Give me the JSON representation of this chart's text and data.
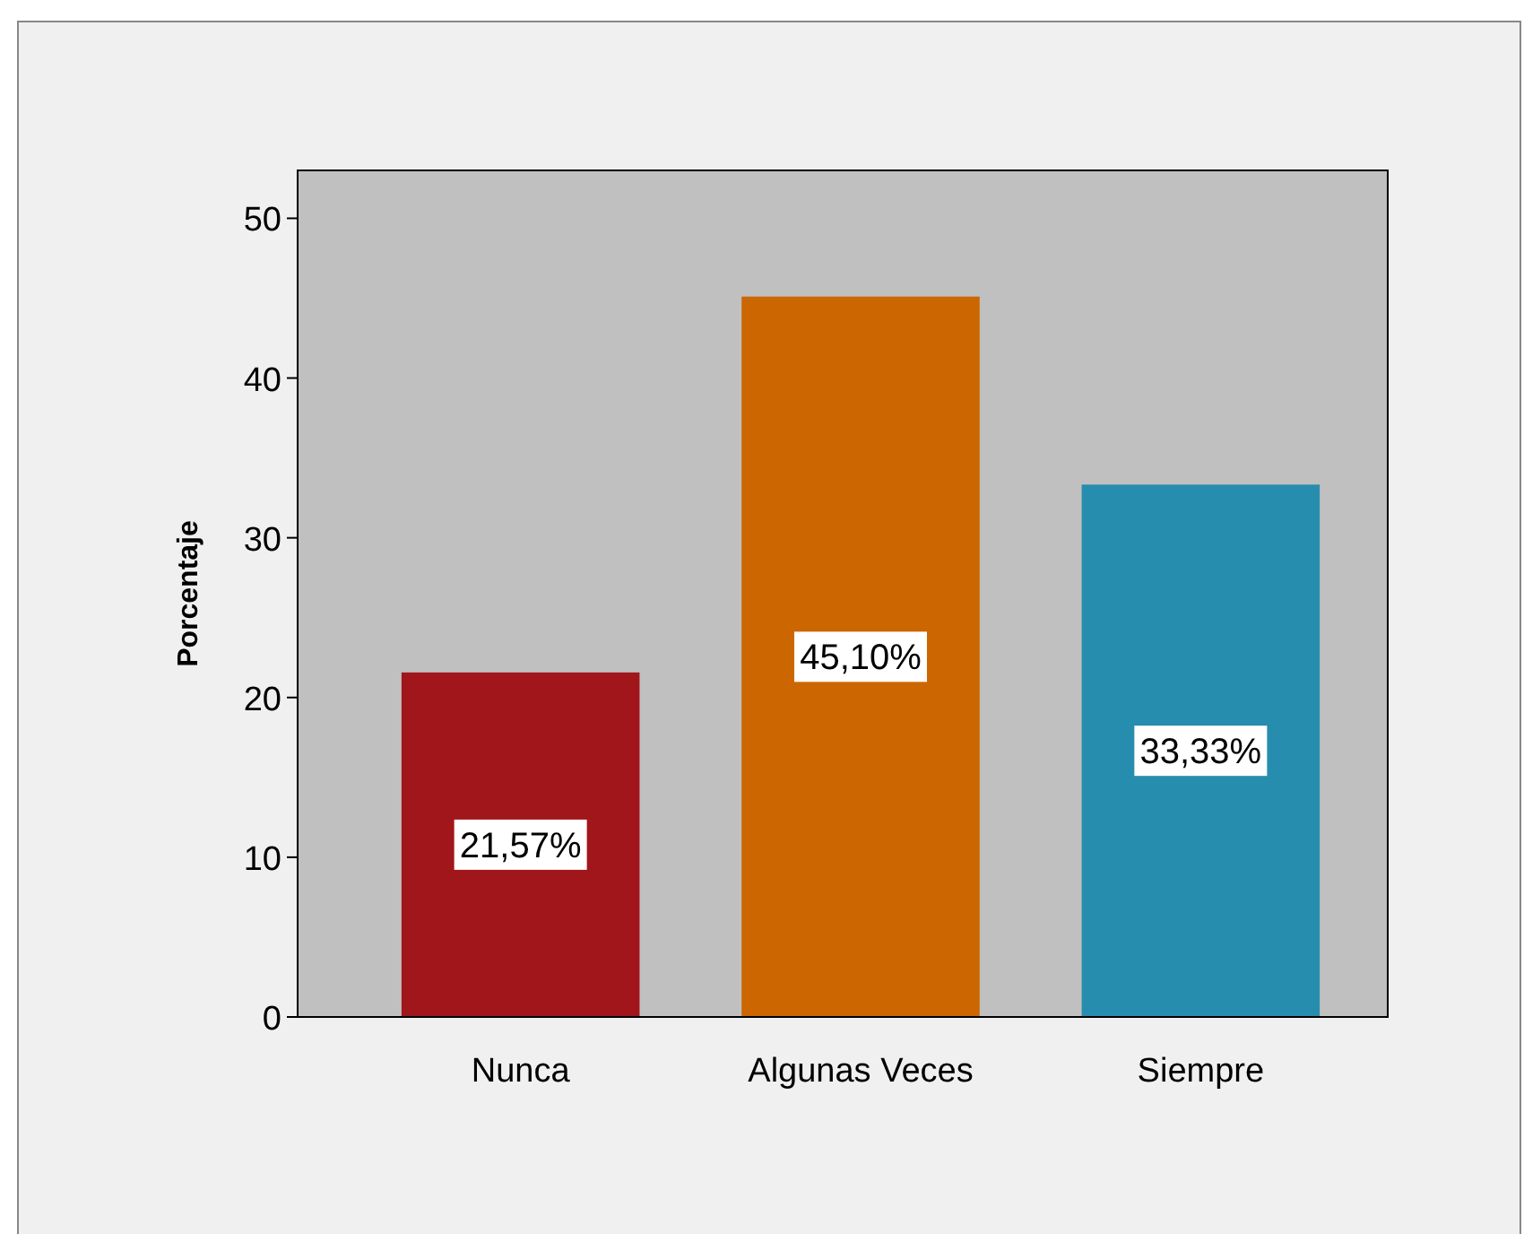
{
  "chart_data": {
    "type": "bar",
    "ylabel": "Porcentaje",
    "categories": [
      "Nunca",
      "Algunas Veces",
      "Siempre"
    ],
    "values": [
      21.57,
      45.1,
      33.33
    ],
    "colors": [
      "#a0161a",
      "#cc6600",
      "#278dae"
    ],
    "value_labels": [
      "21,57%",
      "45,10%",
      "33,33%"
    ],
    "ylim": [
      0,
      53
    ],
    "yticks": [
      0,
      10,
      20,
      30,
      40,
      50
    ]
  }
}
